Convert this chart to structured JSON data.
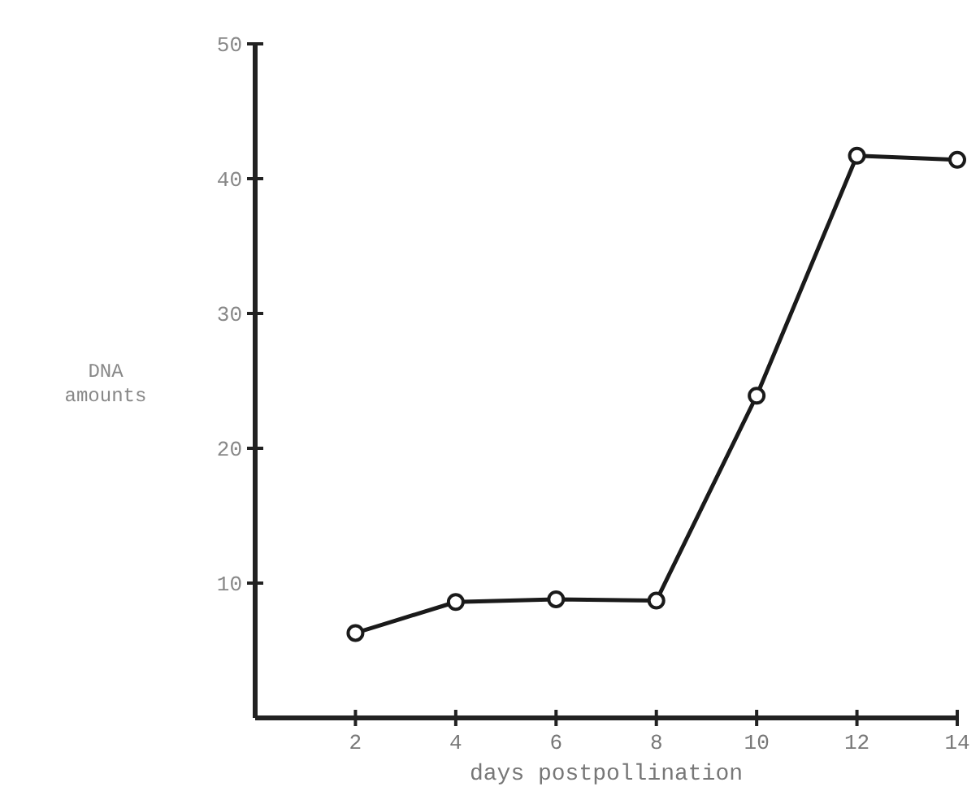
{
  "chart_data": {
    "type": "line",
    "xlabel": "days postpollination",
    "ylabel": "DNA amounts",
    "x": [
      2,
      4,
      6,
      8,
      10,
      12,
      14
    ],
    "series": [
      {
        "color": "#1a1a1a",
        "values": [
          6.3,
          8.6,
          8.8,
          8.7,
          23.9,
          41.7,
          41.4
        ]
      }
    ],
    "xlim": [
      0,
      14
    ],
    "xticks": [
      2,
      4,
      6,
      8,
      10,
      12,
      14
    ],
    "ylim": [
      0,
      50
    ],
    "yticks": [
      10,
      20,
      30,
      40,
      50
    ],
    "marker": "circle",
    "line_style": "solid"
  }
}
